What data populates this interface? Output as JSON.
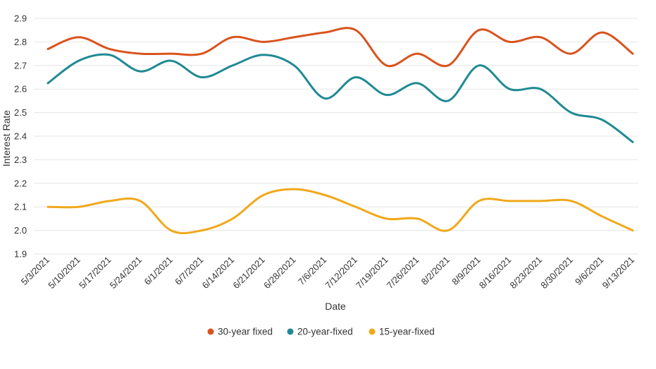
{
  "chart_data": {
    "type": "line",
    "title": "",
    "xlabel": "Date",
    "ylabel": "Interest Rate",
    "ylim": [
      1.9,
      2.9
    ],
    "yticks": [
      "1.9",
      "2.0",
      "2.1",
      "2.2",
      "2.3",
      "2.4",
      "2.5",
      "2.6",
      "2.7",
      "2.8",
      "2.9"
    ],
    "categories": [
      "5/3/2021",
      "5/10/2021",
      "5/17/2021",
      "5/24/2021",
      "6/1/2021",
      "6/7/2021",
      "6/14/2021",
      "6/21/2021",
      "6/28/2021",
      "7/6/2021",
      "7/12/2021",
      "7/19/2021",
      "7/26/2021",
      "8/2/2021",
      "8/9/2021",
      "8/16/2021",
      "8/23/2021",
      "8/30/2021",
      "9/6/2021",
      "9/13/2021"
    ],
    "grid": true,
    "legend_position": "bottom",
    "series": [
      {
        "name": "30-year fixed",
        "color": "#d9531e",
        "values": [
          2.77,
          2.82,
          2.77,
          2.75,
          2.75,
          2.75,
          2.82,
          2.8,
          2.82,
          2.84,
          2.85,
          2.7,
          2.75,
          2.7,
          2.85,
          2.8,
          2.82,
          2.75,
          2.84,
          2.75
        ]
      },
      {
        "name": "20-year-fixed",
        "color": "#1f8a93",
        "values": [
          2.625,
          2.72,
          2.745,
          2.675,
          2.72,
          2.65,
          2.7,
          2.745,
          2.7,
          2.56,
          2.65,
          2.575,
          2.625,
          2.55,
          2.7,
          2.6,
          2.6,
          2.5,
          2.47,
          2.375
        ]
      },
      {
        "name": "15-year-fixed",
        "color": "#f0a81c",
        "values": [
          2.1,
          2.1,
          2.125,
          2.125,
          2.0,
          2.0,
          2.05,
          2.15,
          2.175,
          2.15,
          2.1,
          2.05,
          2.05,
          2.0,
          2.125,
          2.125,
          2.125,
          2.125,
          2.06,
          2.0
        ]
      }
    ]
  }
}
